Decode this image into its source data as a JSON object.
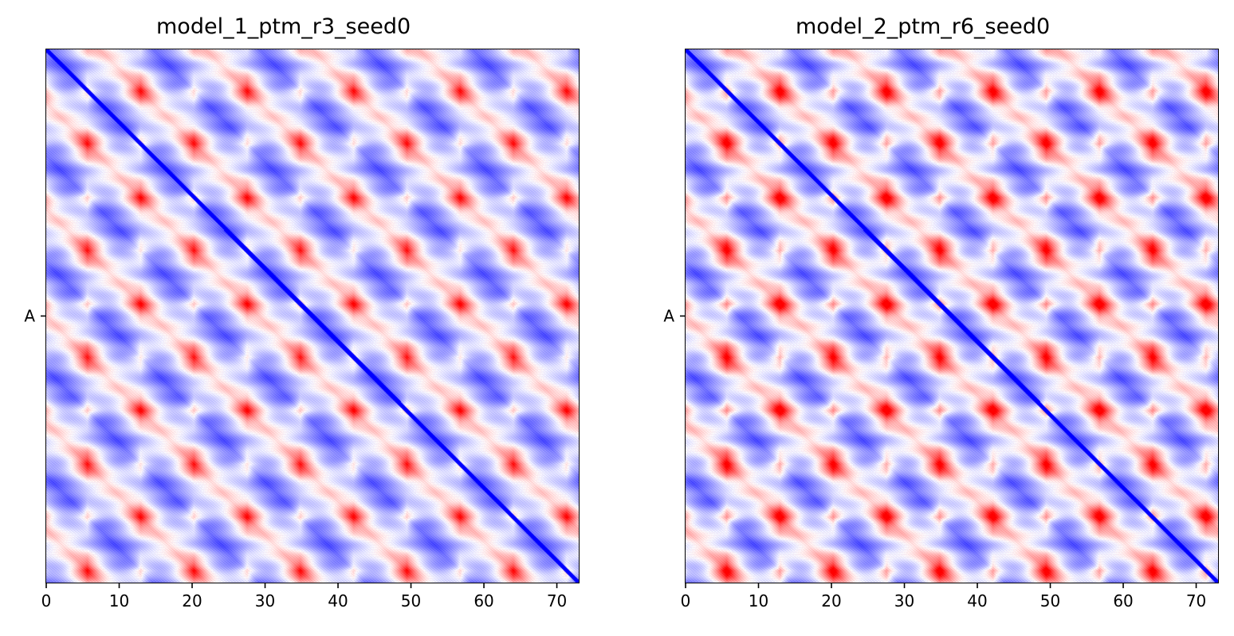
{
  "chart_data": [
    {
      "type": "heatmap",
      "title": "model_1_ptm_r3_seed0",
      "xlim": [
        0,
        73
      ],
      "ylim": [
        73,
        0
      ],
      "x_ticks": [
        "0",
        "10",
        "20",
        "30",
        "40",
        "50",
        "60",
        "70"
      ],
      "x_tick_values": [
        0,
        10,
        20,
        30,
        40,
        50,
        60,
        70
      ],
      "y_tick_labels": [
        "A"
      ],
      "y_tick_values": [
        36.5
      ],
      "colormap": {
        "low": "#0000ff",
        "mid": "#ffffff",
        "high": "#ff0000"
      },
      "value_range": [
        0,
        30
      ],
      "repeat_period_residues": 14.6,
      "diagonal_value": 0,
      "hotspot_strength": 0.8
    },
    {
      "type": "heatmap",
      "title": "model_2_ptm_r6_seed0",
      "xlim": [
        0,
        73
      ],
      "ylim": [
        73,
        0
      ],
      "x_ticks": [
        "0",
        "10",
        "20",
        "30",
        "40",
        "50",
        "60",
        "70"
      ],
      "x_tick_values": [
        0,
        10,
        20,
        30,
        40,
        50,
        60,
        70
      ],
      "y_tick_labels": [
        "A"
      ],
      "y_tick_values": [
        36.5
      ],
      "colormap": {
        "low": "#0000ff",
        "mid": "#ffffff",
        "high": "#ff0000"
      },
      "value_range": [
        0,
        30
      ],
      "repeat_period_residues": 14.6,
      "diagonal_value": 0,
      "hotspot_strength": 1.0
    }
  ]
}
